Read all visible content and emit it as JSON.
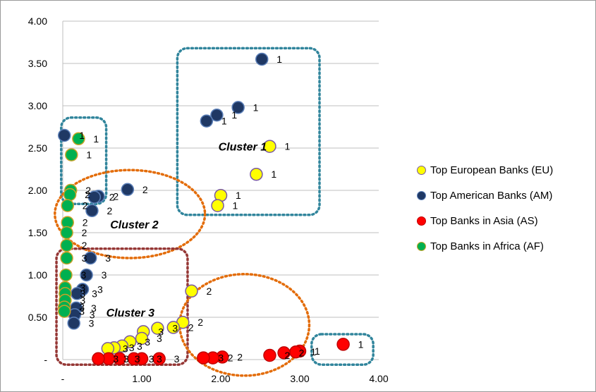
{
  "chart_data": {
    "type": "scatter",
    "xlim": [
      0,
      4
    ],
    "ylim": [
      0,
      4
    ],
    "x_ticks": [
      "-",
      "1.00",
      "2.00",
      "3.00",
      "4.00"
    ],
    "y_ticks": [
      "-",
      "0.50",
      "1.00",
      "1.50",
      "2.00",
      "2.50",
      "3.00",
      "3.50",
      "4.00"
    ],
    "grid": "horizontal",
    "legend_position": "right",
    "series": [
      {
        "name": "Top European Banks (EU)",
        "color": "#ffff00",
        "stroke": "#7a5aa0",
        "points": [
          {
            "x": 2.62,
            "y": 2.52,
            "label": "1"
          },
          {
            "x": 2.45,
            "y": 2.19,
            "label": "1"
          },
          {
            "x": 2.0,
            "y": 1.94,
            "label": "1"
          },
          {
            "x": 1.96,
            "y": 1.82,
            "label": "1"
          },
          {
            "x": 1.63,
            "y": 0.81,
            "label": "2"
          },
          {
            "x": 1.52,
            "y": 0.44,
            "label": "2"
          },
          {
            "x": 1.4,
            "y": 0.38,
            "label": "2"
          },
          {
            "x": 1.2,
            "y": 0.37,
            "label": "3"
          },
          {
            "x": 1.02,
            "y": 0.33,
            "label": "3"
          },
          {
            "x": 1.0,
            "y": 0.25,
            "label": "3"
          },
          {
            "x": 0.85,
            "y": 0.21,
            "label": "3"
          },
          {
            "x": 0.75,
            "y": 0.16,
            "label": "3"
          },
          {
            "x": 0.65,
            "y": 0.14,
            "label": "3"
          },
          {
            "x": 0.57,
            "y": 0.13,
            "label": "3"
          }
        ]
      },
      {
        "name": "Top American Banks (AM)",
        "color": "#1f3864",
        "stroke": "#5b7fb8",
        "points": [
          {
            "x": 2.52,
            "y": 3.55,
            "label": "1"
          },
          {
            "x": 2.22,
            "y": 2.98,
            "label": "1"
          },
          {
            "x": 1.95,
            "y": 2.89,
            "label": "1"
          },
          {
            "x": 1.82,
            "y": 2.82,
            "label": "1"
          },
          {
            "x": 0.02,
            "y": 2.65,
            "label": "1"
          },
          {
            "x": 0.82,
            "y": 2.01,
            "label": "2"
          },
          {
            "x": 0.45,
            "y": 1.93,
            "label": "2"
          },
          {
            "x": 0.4,
            "y": 1.92,
            "label": "2"
          },
          {
            "x": 0.37,
            "y": 1.76,
            "label": "2"
          },
          {
            "x": 0.35,
            "y": 1.2,
            "label": "3"
          },
          {
            "x": 0.3,
            "y": 1.0,
            "label": "3"
          },
          {
            "x": 0.25,
            "y": 0.83,
            "label": "3"
          },
          {
            "x": 0.18,
            "y": 0.78,
            "label": "3"
          },
          {
            "x": 0.17,
            "y": 0.61,
            "label": "3"
          },
          {
            "x": 0.15,
            "y": 0.53,
            "label": "3"
          },
          {
            "x": 0.14,
            "y": 0.43,
            "label": "3"
          }
        ]
      },
      {
        "name": "Top Banks in Asia (AS)",
        "color": "#ff0000",
        "stroke": "#c00000",
        "points": [
          {
            "x": 3.55,
            "y": 0.18,
            "label": "1"
          },
          {
            "x": 3.0,
            "y": 0.1,
            "label": "1"
          },
          {
            "x": 2.95,
            "y": 0.09,
            "label": "1"
          },
          {
            "x": 2.8,
            "y": 0.08,
            "label": "2"
          },
          {
            "x": 2.62,
            "y": 0.05,
            "label": "2"
          },
          {
            "x": 2.02,
            "y": 0.03,
            "label": "2"
          },
          {
            "x": 1.9,
            "y": 0.02,
            "label": "2"
          },
          {
            "x": 1.78,
            "y": 0.02,
            "label": "3"
          },
          {
            "x": 1.22,
            "y": 0.01,
            "label": "3"
          },
          {
            "x": 1.0,
            "y": 0.01,
            "label": "3"
          },
          {
            "x": 0.9,
            "y": 0.01,
            "label": "3"
          },
          {
            "x": 0.72,
            "y": 0.01,
            "label": "3"
          },
          {
            "x": 0.58,
            "y": 0.01,
            "label": "3"
          },
          {
            "x": 0.45,
            "y": 0.01,
            "label": "3"
          }
        ]
      },
      {
        "name": "Top Banks in Africa (AF)",
        "color": "#00b050",
        "stroke": "#c9a227",
        "points": [
          {
            "x": 0.2,
            "y": 2.61,
            "label": "1"
          },
          {
            "x": 0.11,
            "y": 2.42,
            "label": "1"
          },
          {
            "x": 0.1,
            "y": 2.0,
            "label": "2"
          },
          {
            "x": 0.09,
            "y": 1.95,
            "label": "2"
          },
          {
            "x": 0.06,
            "y": 1.82,
            "label": "2"
          },
          {
            "x": 0.06,
            "y": 1.62,
            "label": "2"
          },
          {
            "x": 0.05,
            "y": 1.5,
            "label": "2"
          },
          {
            "x": 0.05,
            "y": 1.35,
            "label": "2"
          },
          {
            "x": 0.05,
            "y": 1.2,
            "label": "3"
          },
          {
            "x": 0.04,
            "y": 1.0,
            "label": "3"
          },
          {
            "x": 0.03,
            "y": 0.85,
            "label": "3"
          },
          {
            "x": 0.03,
            "y": 0.78,
            "label": "3"
          },
          {
            "x": 0.03,
            "y": 0.7,
            "label": "3"
          },
          {
            "x": 0.02,
            "y": 0.62,
            "label": "3"
          },
          {
            "x": 0.02,
            "y": 0.57,
            "label": "3"
          }
        ]
      }
    ],
    "annotations": [
      {
        "text": "Cluster 1",
        "x": 1.97,
        "y": 2.52
      },
      {
        "text": "Cluster 2",
        "x": 0.6,
        "y": 1.6
      },
      {
        "text": "Cluster 3",
        "x": 0.55,
        "y": 0.56
      }
    ],
    "enclosures": [
      {
        "name": "cluster-1-box",
        "shape": "rect",
        "color": "#31859c",
        "x0": 1.45,
        "x1": 3.25,
        "y0": 1.71,
        "y1": 3.68
      },
      {
        "name": "top-left-box",
        "shape": "rect",
        "color": "#31859c",
        "x0": -0.02,
        "x1": 0.55,
        "y0": 1.84,
        "y1": 2.86
      },
      {
        "name": "bottom-right-box",
        "shape": "rect",
        "color": "#31859c",
        "x0": 3.15,
        "x1": 3.93,
        "y0": -0.06,
        "y1": 0.3
      },
      {
        "name": "cluster-2-ellipse",
        "shape": "ellipse",
        "color": "#e36c09",
        "cx": 0.85,
        "cy": 1.72,
        "rx": 0.95,
        "ry": 0.52
      },
      {
        "name": "cluster-3-box",
        "shape": "rect",
        "color": "#953735",
        "x0": -0.08,
        "x1": 1.58,
        "y0": -0.06,
        "y1": 1.31
      },
      {
        "name": "bottom-middle-ellipse",
        "shape": "ellipse",
        "color": "#e36c09",
        "cx": 2.3,
        "cy": 0.41,
        "rx": 0.82,
        "ry": 0.6
      }
    ]
  }
}
